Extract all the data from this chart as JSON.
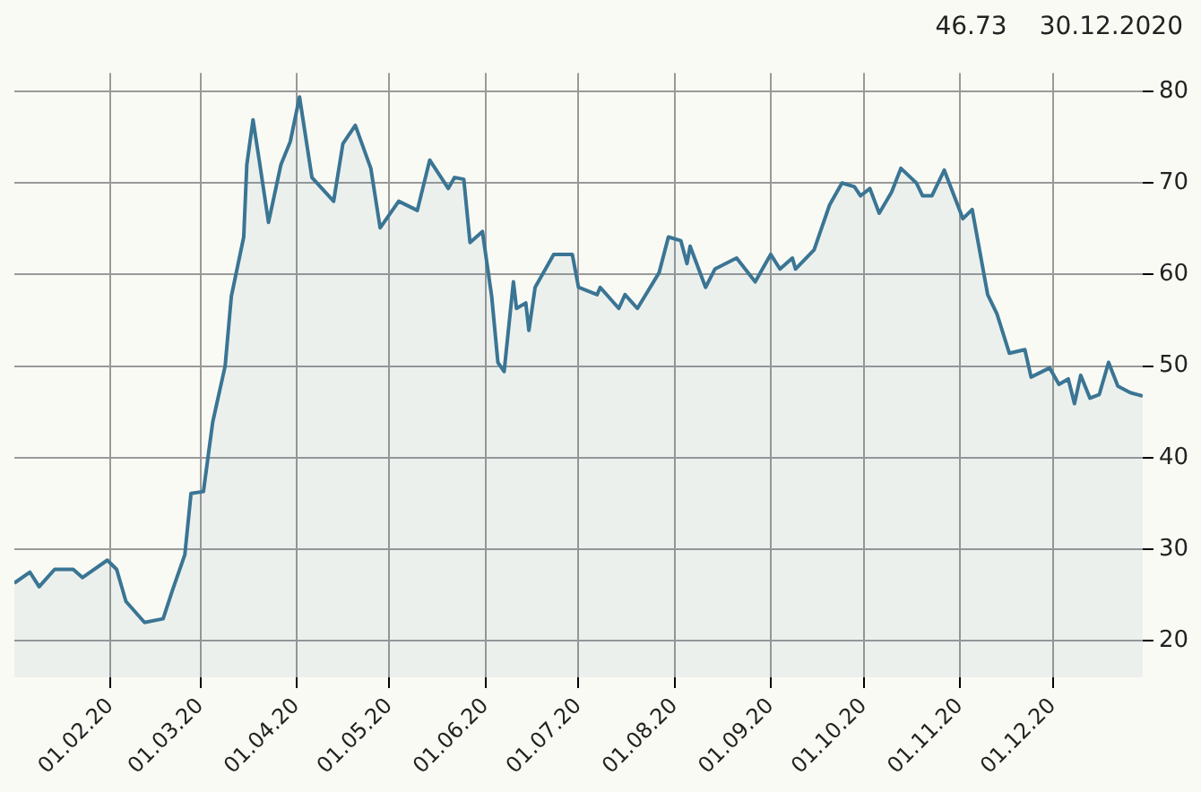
{
  "chart_data": {
    "type": "area",
    "annotations": [
      "30.12.2020",
      "46.73"
    ],
    "x": [
      "2020-01-01",
      "2020-01-06",
      "2020-01-09",
      "2020-01-14",
      "2020-01-20",
      "2020-01-23",
      "2020-01-31",
      "2020-02-03",
      "2020-02-06",
      "2020-02-12",
      "2020-02-18",
      "2020-02-21",
      "2020-02-25",
      "2020-02-27",
      "2020-03-02",
      "2020-03-05",
      "2020-03-09",
      "2020-03-11",
      "2020-03-15",
      "2020-03-16",
      "2020-03-18",
      "2020-03-20",
      "2020-03-23",
      "2020-03-27",
      "2020-03-30",
      "2020-04-02",
      "2020-04-06",
      "2020-04-13",
      "2020-04-16",
      "2020-04-20",
      "2020-04-25",
      "2020-04-28",
      "2020-05-04",
      "2020-05-10",
      "2020-05-14",
      "2020-05-20",
      "2020-05-22",
      "2020-05-25",
      "2020-05-27",
      "2020-05-31",
      "2020-06-03",
      "2020-06-05",
      "2020-06-07",
      "2020-06-10",
      "2020-06-11",
      "2020-06-14",
      "2020-06-15",
      "2020-06-17",
      "2020-06-23",
      "2020-06-29",
      "2020-07-01",
      "2020-07-07",
      "2020-07-08",
      "2020-07-14",
      "2020-07-16",
      "2020-07-20",
      "2020-07-27",
      "2020-07-30",
      "2020-08-03",
      "2020-08-05",
      "2020-08-06",
      "2020-08-11",
      "2020-08-14",
      "2020-08-21",
      "2020-08-27",
      "2020-09-01",
      "2020-09-04",
      "2020-09-08",
      "2020-09-09",
      "2020-09-15",
      "2020-09-20",
      "2020-09-24",
      "2020-09-28",
      "2020-09-30",
      "2020-10-03",
      "2020-10-06",
      "2020-10-10",
      "2020-10-13",
      "2020-10-18",
      "2020-10-20",
      "2020-10-23",
      "2020-10-27",
      "2020-11-02",
      "2020-11-05",
      "2020-11-10",
      "2020-11-13",
      "2020-11-17",
      "2020-11-22",
      "2020-11-24",
      "2020-11-30",
      "2020-12-03",
      "2020-12-06",
      "2020-12-08",
      "2020-12-10",
      "2020-12-13",
      "2020-12-16",
      "2020-12-19",
      "2020-12-22",
      "2020-12-26",
      "2020-12-30"
    ],
    "series": [
      {
        "color": "#3a7594",
        "values": [
          26.3,
          27.5,
          25.9,
          27.8,
          27.8,
          26.9,
          28.8,
          27.8,
          24.3,
          22.0,
          22.4,
          25.5,
          29.4,
          36.1,
          36.3,
          43.9,
          50.0,
          57.6,
          64.1,
          72.0,
          76.9,
          72.5,
          65.7,
          72.0,
          74.5,
          79.4,
          70.6,
          68.0,
          74.3,
          76.3,
          71.6,
          65.1,
          68.0,
          67.0,
          72.5,
          69.4,
          70.6,
          70.4,
          63.5,
          64.7,
          57.6,
          50.4,
          49.4,
          59.2,
          56.3,
          56.9,
          53.9,
          58.6,
          62.2,
          62.2,
          58.6,
          57.8,
          58.6,
          56.3,
          57.8,
          56.3,
          60.2,
          64.1,
          63.7,
          61.2,
          63.1,
          58.6,
          60.6,
          61.8,
          59.2,
          62.2,
          60.6,
          61.8,
          60.6,
          62.7,
          67.6,
          70.0,
          69.6,
          68.6,
          69.4,
          66.7,
          69.0,
          71.6,
          70.0,
          68.6,
          68.6,
          71.4,
          66.1,
          67.1,
          57.8,
          55.7,
          51.4,
          51.8,
          48.8,
          49.8,
          48.0,
          48.6,
          45.9,
          49.0,
          46.5,
          46.9,
          50.4,
          47.8,
          47.1,
          46.73
        ]
      }
    ],
    "xlim": [
      "2020-01-01",
      "2020-12-30"
    ],
    "xticks": [
      {
        "value": "2020-02-01",
        "label": "01.02.20"
      },
      {
        "value": "2020-03-01",
        "label": "01.03.20"
      },
      {
        "value": "2020-04-01",
        "label": "01.04.20"
      },
      {
        "value": "2020-05-01",
        "label": "01.05.20"
      },
      {
        "value": "2020-06-01",
        "label": "01.06.20"
      },
      {
        "value": "2020-07-01",
        "label": "01.07.20"
      },
      {
        "value": "2020-08-01",
        "label": "01.08.20"
      },
      {
        "value": "2020-09-01",
        "label": "01.09.20"
      },
      {
        "value": "2020-10-01",
        "label": "01.10.20"
      },
      {
        "value": "2020-11-01",
        "label": "01.11.20"
      },
      {
        "value": "2020-12-01",
        "label": "01.12.20"
      }
    ],
    "ylim": [
      16,
      82
    ],
    "yticks": [
      20,
      30,
      40,
      50,
      60,
      70,
      80
    ],
    "grid": true,
    "legend": false
  }
}
